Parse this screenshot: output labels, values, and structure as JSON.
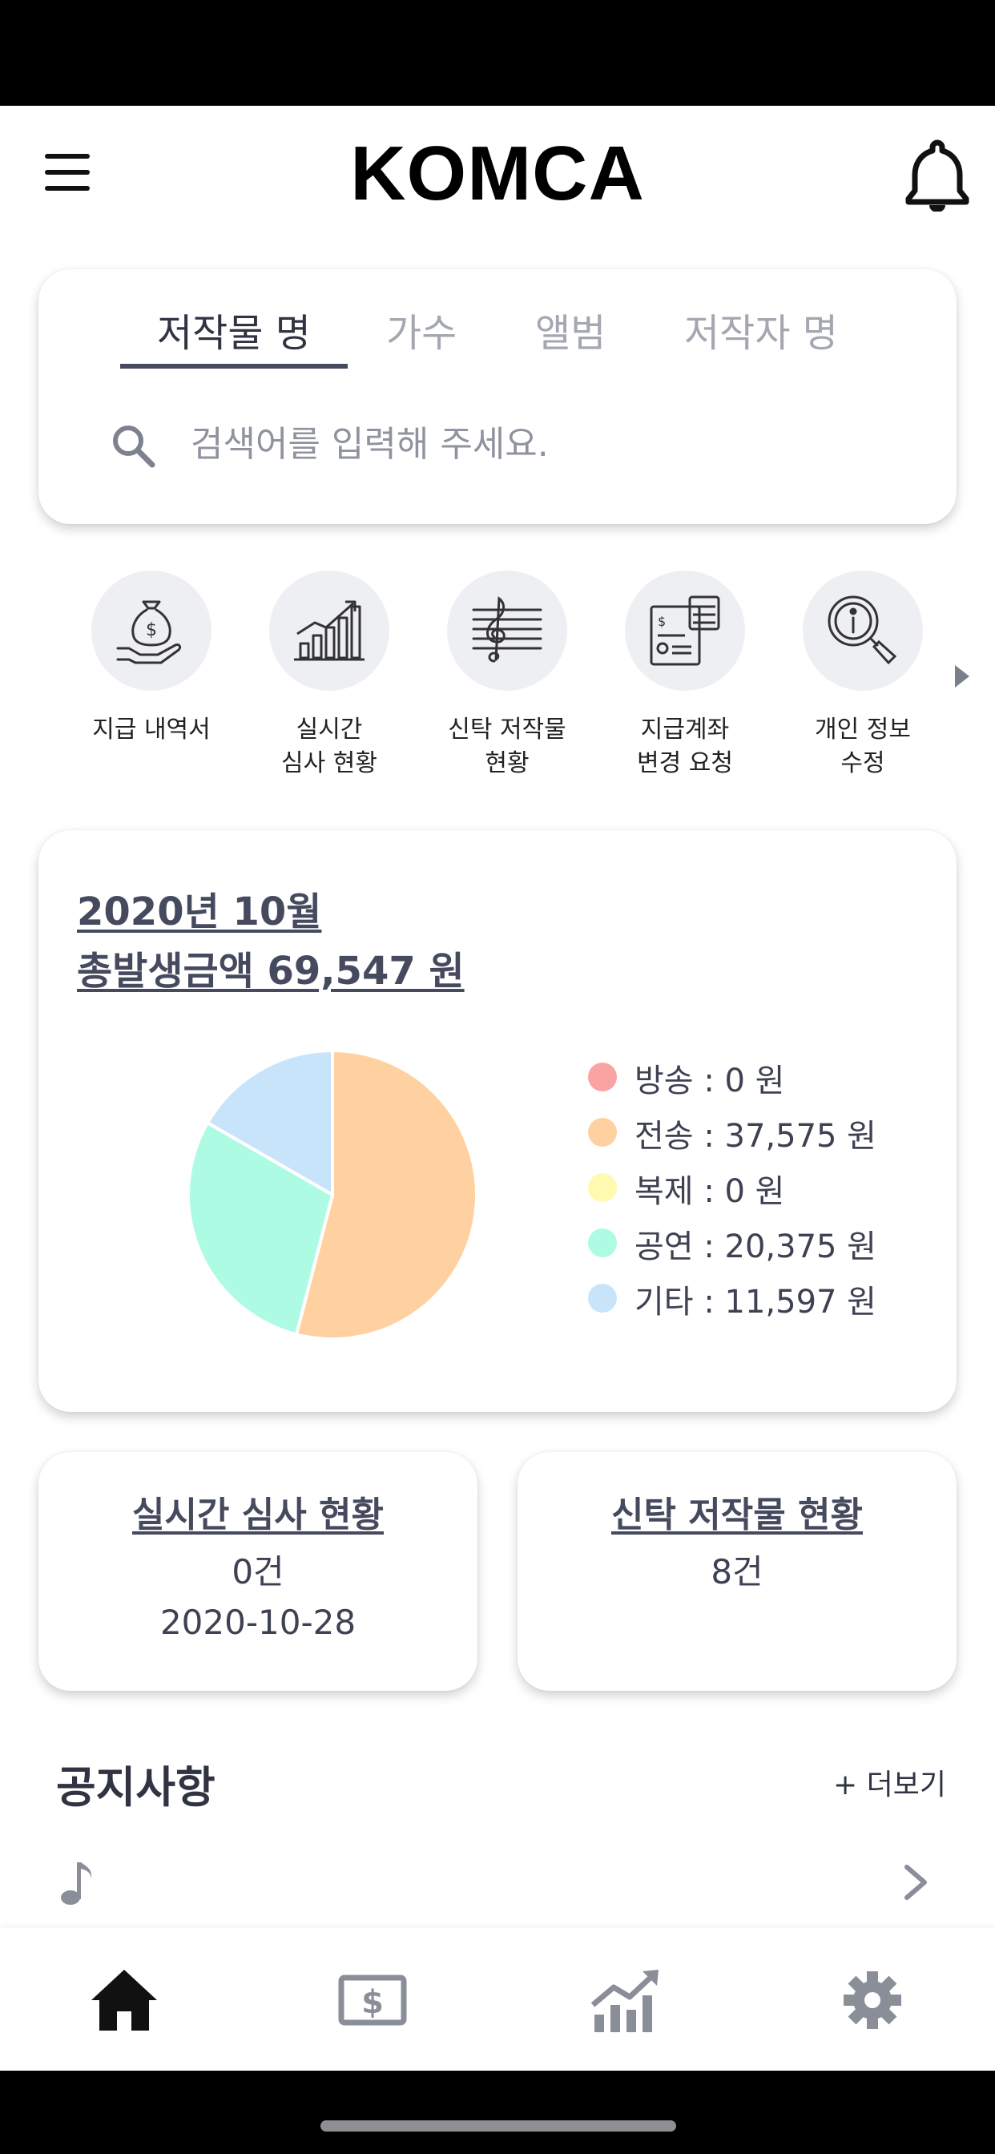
{
  "app": {
    "title": "KOMCA",
    "menu_icon": "hamburger-menu-icon",
    "notification_icon": "bell-icon"
  },
  "search": {
    "tabs": [
      "저작물 명",
      "가수",
      "앨범",
      "저작자 명"
    ],
    "active_tab": "저작물 명",
    "placeholder": "검색어를 입력해 주세요.",
    "icon": "search-icon"
  },
  "quick_menu": {
    "items": [
      {
        "label": "지급 내역서",
        "icon": "money-bag-hand-icon"
      },
      {
        "label": "실시간\n심사 현황",
        "icon": "growth-chart-icon"
      },
      {
        "label": "신탁 저작물\n현황",
        "icon": "music-staff-icon"
      },
      {
        "label": "지급계좌\n변경 요청",
        "icon": "calculator-document-icon"
      },
      {
        "label": "개인 정보\n수정",
        "icon": "info-magnifier-icon"
      }
    ],
    "next_icon": "arrow-right-icon"
  },
  "revenue": {
    "period": "2020년 10월",
    "total_label": "총발생금액 69,547 원"
  },
  "chart_data": {
    "type": "pie",
    "title": "",
    "categories": [
      "방송",
      "전송",
      "복제",
      "공연",
      "기타"
    ],
    "values": [
      0,
      37575,
      0,
      20375,
      11597
    ],
    "legend_labels": [
      "방송 : 0 원",
      "전송 : 37,575 원",
      "복제 : 0 원",
      "공연 : 20,375 원",
      "기타 : 11,597 원"
    ],
    "colors": [
      "#f9a3a3",
      "#ffd1a0",
      "#fffab0",
      "#aefbe3",
      "#c8e4fb"
    ],
    "legend_position": "right"
  },
  "stats": {
    "review": {
      "title": "실시간 심사 현황",
      "count": "0건",
      "date": "2020-10-28"
    },
    "trust": {
      "title": "신탁 저작물 현황",
      "count": "8건"
    }
  },
  "notice": {
    "title": "공지사항",
    "more_label": "+ 더보기",
    "row_icon": "music-note-icon",
    "row_chevron_icon": "chevron-right-icon"
  },
  "bottom_nav": {
    "items": [
      {
        "name": "home",
        "icon": "home-icon",
        "active": true
      },
      {
        "name": "payment",
        "icon": "dollar-bill-icon",
        "active": false
      },
      {
        "name": "statistics",
        "icon": "chart-icon",
        "active": false
      },
      {
        "name": "settings",
        "icon": "gear-icon",
        "active": false
      }
    ],
    "active_color": "#111111",
    "inactive_color": "#8a8e99"
  }
}
